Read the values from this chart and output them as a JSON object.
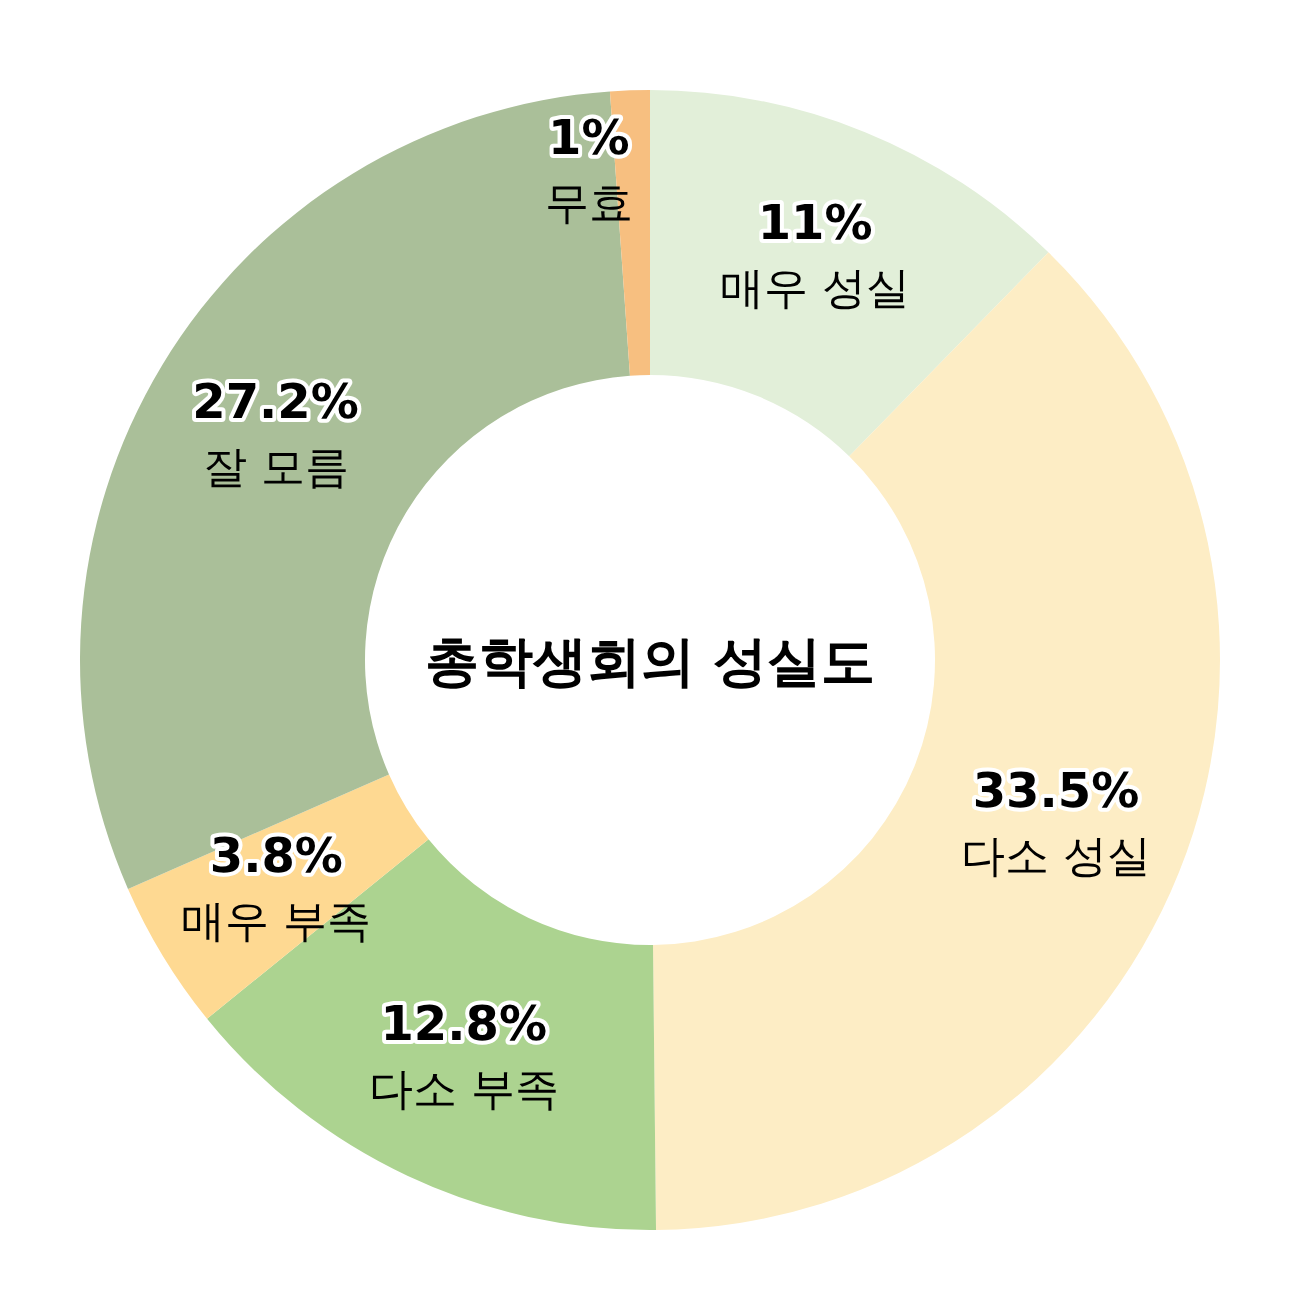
{
  "chart_data": {
    "type": "donut",
    "title": "총학생회의 성실도",
    "categories": [
      "매우 성실",
      "다소 성실",
      "다소 부족",
      "매우 부족",
      "잘 모름",
      "무효"
    ],
    "values": [
      11,
      33.5,
      12.8,
      3.8,
      27.2,
      1
    ],
    "value_labels": [
      "11%",
      "33.5%",
      "12.8%",
      "3.8%",
      "27.2%",
      "1%"
    ],
    "colors": [
      "#e2efd9",
      "#fdedc5",
      "#acd390",
      "#fed992",
      "#aabf99",
      "#f7bf80"
    ]
  }
}
